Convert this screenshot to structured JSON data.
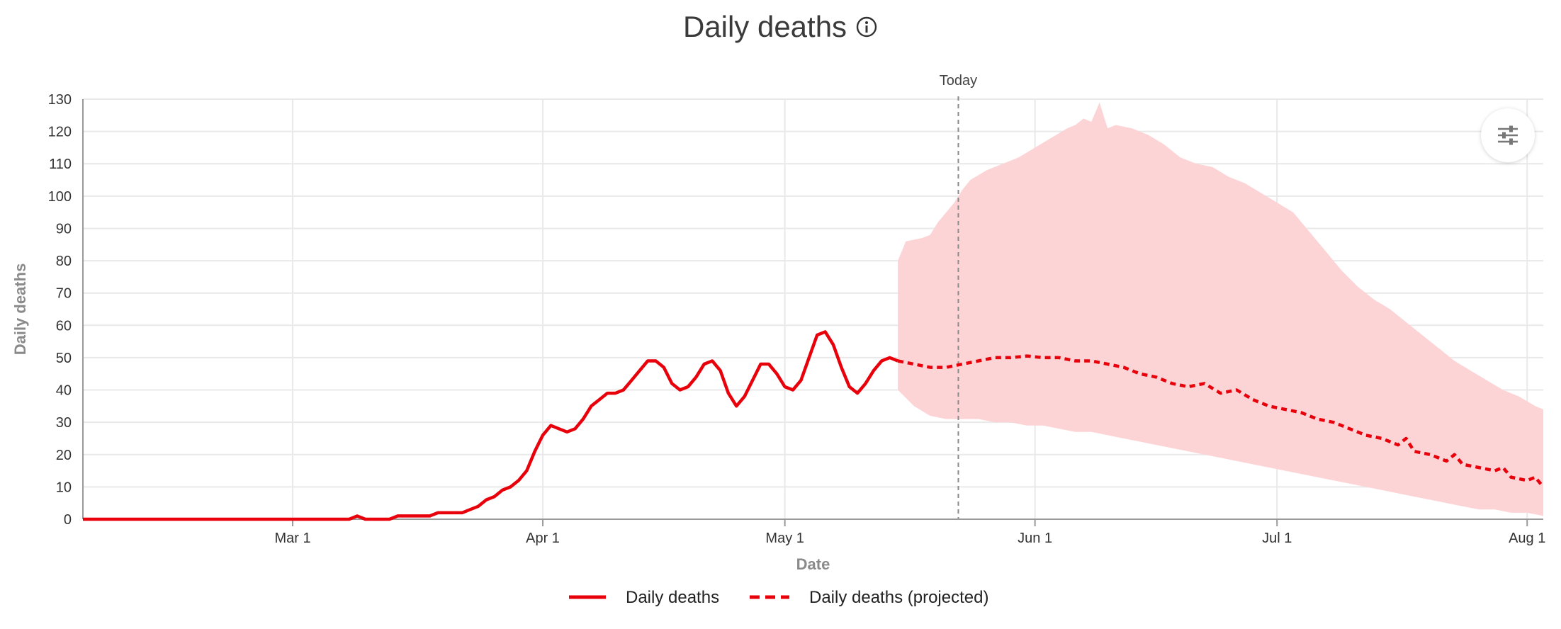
{
  "title": "Daily deaths",
  "info_icon": "info-icon",
  "settings_icon": "sliders-icon",
  "colors": {
    "line": "#e8000b",
    "band": "#fdd4d6",
    "grid": "#e9e9e9",
    "axis": "#999999",
    "today": "#8a8a8a"
  },
  "chart_data": {
    "type": "line",
    "title": "Daily deaths",
    "xlabel": "Date",
    "ylabel": "Daily deaths",
    "ylim": [
      0,
      130
    ],
    "yticks": [
      0,
      10,
      20,
      30,
      40,
      50,
      60,
      70,
      80,
      90,
      100,
      110,
      120,
      130
    ],
    "x_unit": "days since Feb 4",
    "xlim": [
      0,
      181
    ],
    "xticks": [
      {
        "label": "Mar 1",
        "day": 26
      },
      {
        "label": "Apr 1",
        "day": 57
      },
      {
        "label": "May 1",
        "day": 87
      },
      {
        "label": "Jun 1",
        "day": 118
      },
      {
        "label": "Jul 1",
        "day": 148
      },
      {
        "label": "Aug 1",
        "day": 179
      }
    ],
    "today": {
      "label": "Today",
      "day": 108.5
    },
    "legend": [
      "Daily deaths",
      "Daily deaths (projected)"
    ],
    "series": [
      {
        "name": "Daily deaths",
        "style": "solid",
        "points": [
          [
            0,
            0
          ],
          [
            10,
            0
          ],
          [
            20,
            0
          ],
          [
            30,
            0
          ],
          [
            33,
            0
          ],
          [
            34,
            1
          ],
          [
            35,
            0
          ],
          [
            38,
            0
          ],
          [
            39,
            1
          ],
          [
            43,
            1
          ],
          [
            44,
            2
          ],
          [
            47,
            2
          ],
          [
            48,
            3
          ],
          [
            49,
            4
          ],
          [
            50,
            6
          ],
          [
            51,
            7
          ],
          [
            52,
            9
          ],
          [
            53,
            10
          ],
          [
            54,
            12
          ],
          [
            55,
            15
          ],
          [
            56,
            21
          ],
          [
            57,
            26
          ],
          [
            58,
            29
          ],
          [
            59,
            28
          ],
          [
            60,
            27
          ],
          [
            61,
            28
          ],
          [
            62,
            31
          ],
          [
            63,
            35
          ],
          [
            64,
            37
          ],
          [
            65,
            39
          ],
          [
            66,
            39
          ],
          [
            67,
            40
          ],
          [
            68,
            43
          ],
          [
            69,
            46
          ],
          [
            70,
            49
          ],
          [
            71,
            49
          ],
          [
            72,
            47
          ],
          [
            73,
            42
          ],
          [
            74,
            40
          ],
          [
            75,
            41
          ],
          [
            76,
            44
          ],
          [
            77,
            48
          ],
          [
            78,
            49
          ],
          [
            79,
            46
          ],
          [
            80,
            39
          ],
          [
            81,
            35
          ],
          [
            82,
            38
          ],
          [
            83,
            43
          ],
          [
            84,
            48
          ],
          [
            85,
            48
          ],
          [
            86,
            45
          ],
          [
            87,
            41
          ],
          [
            88,
            40
          ],
          [
            89,
            43
          ],
          [
            90,
            50
          ],
          [
            91,
            57
          ],
          [
            92,
            58
          ],
          [
            93,
            54
          ],
          [
            94,
            47
          ],
          [
            95,
            41
          ],
          [
            96,
            39
          ],
          [
            97,
            42
          ],
          [
            98,
            46
          ],
          [
            99,
            49
          ],
          [
            100,
            50
          ],
          [
            101,
            49
          ]
        ]
      },
      {
        "name": "Daily deaths (projected)",
        "style": "dashed",
        "points": [
          [
            101,
            49
          ],
          [
            103,
            48
          ],
          [
            105,
            47
          ],
          [
            107,
            47
          ],
          [
            109,
            48
          ],
          [
            111,
            49
          ],
          [
            113,
            50
          ],
          [
            115,
            50
          ],
          [
            117,
            50.5
          ],
          [
            119,
            50
          ],
          [
            121,
            50
          ],
          [
            123,
            49
          ],
          [
            125,
            49
          ],
          [
            127,
            48
          ],
          [
            129,
            47
          ],
          [
            131,
            45
          ],
          [
            133,
            44
          ],
          [
            135,
            42
          ],
          [
            137,
            41
          ],
          [
            139,
            42
          ],
          [
            141,
            39
          ],
          [
            143,
            40
          ],
          [
            145,
            37
          ],
          [
            147,
            35
          ],
          [
            149,
            34
          ],
          [
            151,
            33
          ],
          [
            153,
            31
          ],
          [
            155,
            30
          ],
          [
            157,
            28
          ],
          [
            159,
            26
          ],
          [
            161,
            25
          ],
          [
            163,
            23
          ],
          [
            164,
            25
          ],
          [
            165,
            21
          ],
          [
            167,
            20
          ],
          [
            169,
            18
          ],
          [
            170,
            20
          ],
          [
            171,
            17
          ],
          [
            173,
            16
          ],
          [
            175,
            15
          ],
          [
            176,
            16
          ],
          [
            177,
            13
          ],
          [
            179,
            12
          ],
          [
            180,
            13
          ],
          [
            181,
            10
          ]
        ]
      },
      {
        "name": "Projection interval",
        "style": "band",
        "upper": [
          [
            101,
            80
          ],
          [
            102,
            86
          ],
          [
            104,
            87
          ],
          [
            105,
            88
          ],
          [
            106,
            92
          ],
          [
            107,
            95
          ],
          [
            108,
            98
          ],
          [
            109,
            102
          ],
          [
            110,
            105
          ],
          [
            112,
            108
          ],
          [
            114,
            110
          ],
          [
            116,
            112
          ],
          [
            118,
            115
          ],
          [
            120,
            118
          ],
          [
            122,
            121
          ],
          [
            123,
            122
          ],
          [
            124,
            124
          ],
          [
            125,
            123
          ],
          [
            126,
            129
          ],
          [
            127,
            121
          ],
          [
            128,
            122
          ],
          [
            130,
            121
          ],
          [
            132,
            119
          ],
          [
            134,
            116
          ],
          [
            136,
            112
          ],
          [
            138,
            110
          ],
          [
            140,
            109
          ],
          [
            142,
            106
          ],
          [
            144,
            104
          ],
          [
            146,
            101
          ],
          [
            148,
            98
          ],
          [
            150,
            95
          ],
          [
            152,
            89
          ],
          [
            154,
            83
          ],
          [
            156,
            77
          ],
          [
            158,
            72
          ],
          [
            160,
            68
          ],
          [
            162,
            65
          ],
          [
            164,
            61
          ],
          [
            166,
            57
          ],
          [
            168,
            53
          ],
          [
            170,
            49
          ],
          [
            172,
            46
          ],
          [
            174,
            43
          ],
          [
            176,
            40
          ],
          [
            178,
            38
          ],
          [
            180,
            35
          ],
          [
            181,
            34
          ]
        ],
        "lower": [
          [
            181,
            1
          ],
          [
            179,
            2
          ],
          [
            177,
            2
          ],
          [
            175,
            3
          ],
          [
            173,
            3
          ],
          [
            171,
            4
          ],
          [
            169,
            5
          ],
          [
            167,
            6
          ],
          [
            165,
            7
          ],
          [
            163,
            8
          ],
          [
            161,
            9
          ],
          [
            159,
            10
          ],
          [
            157,
            11
          ],
          [
            155,
            12
          ],
          [
            153,
            13
          ],
          [
            151,
            14
          ],
          [
            149,
            15
          ],
          [
            147,
            16
          ],
          [
            145,
            17
          ],
          [
            143,
            18
          ],
          [
            141,
            19
          ],
          [
            139,
            20
          ],
          [
            137,
            21
          ],
          [
            135,
            22
          ],
          [
            133,
            23
          ],
          [
            131,
            24
          ],
          [
            129,
            25
          ],
          [
            127,
            26
          ],
          [
            125,
            27
          ],
          [
            123,
            27
          ],
          [
            121,
            28
          ],
          [
            119,
            29
          ],
          [
            117,
            29
          ],
          [
            115,
            30
          ],
          [
            113,
            30
          ],
          [
            111,
            31
          ],
          [
            109,
            31
          ],
          [
            107,
            31
          ],
          [
            105,
            32
          ],
          [
            103,
            35
          ],
          [
            101,
            40
          ]
        ]
      }
    ]
  }
}
